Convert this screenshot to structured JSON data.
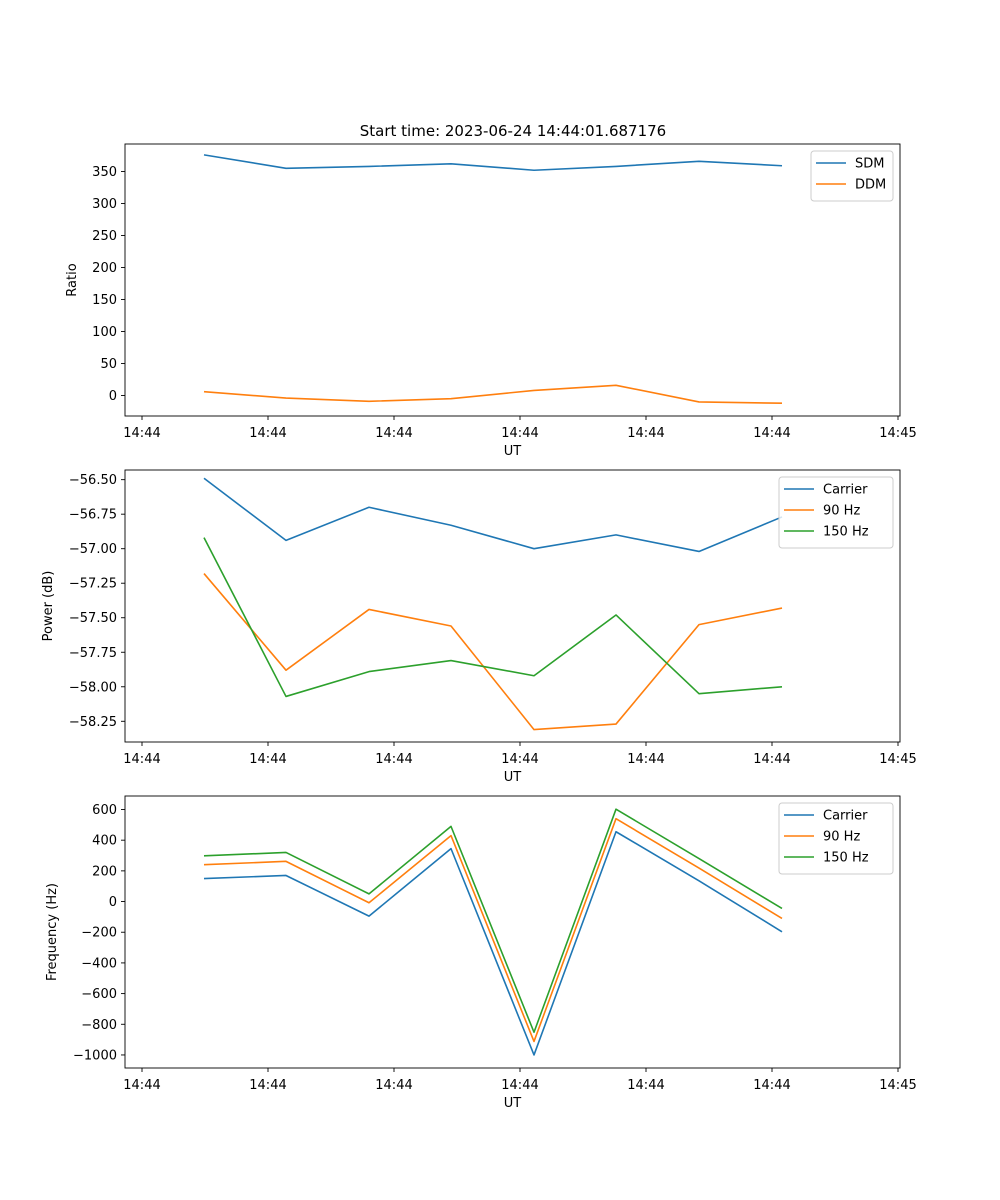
{
  "figure": {
    "title": "Start time: 2023-06-24 14:44:01.687176"
  },
  "chart_data": [
    {
      "type": "line",
      "xlabel": "UT",
      "ylabel": "Ratio",
      "x_tick_labels": [
        "14:44",
        "14:44",
        "14:44",
        "14:44",
        "14:44",
        "14:44",
        "14:44",
        "14:45"
      ],
      "x_points": 8,
      "ylim": [
        -32,
        393
      ],
      "yticks": [
        0,
        50,
        100,
        150,
        200,
        250,
        300,
        350
      ],
      "legend": "top-right",
      "grid": false,
      "series": [
        {
          "name": "SDM",
          "color": "#1f77b4",
          "values": [
            376,
            355,
            358,
            362,
            352,
            358,
            366,
            359
          ]
        },
        {
          "name": "DDM",
          "color": "#ff7f0e",
          "values": [
            6,
            -4,
            -9,
            -5,
            8,
            16,
            -10,
            -12
          ]
        }
      ]
    },
    {
      "type": "line",
      "xlabel": "UT",
      "ylabel": "Power (dB)",
      "x_tick_labels": [
        "14:44",
        "14:44",
        "14:44",
        "14:44",
        "14:44",
        "14:44",
        "14:44",
        "14:45"
      ],
      "x_points": 8,
      "ylim": [
        -58.4,
        -56.43
      ],
      "yticks": [
        -58.25,
        -58.0,
        -57.75,
        -57.5,
        -57.25,
        -57.0,
        -56.75,
        -56.5
      ],
      "ytick_labels": [
        "−58.25",
        "−58.00",
        "−57.75",
        "−57.50",
        "−57.25",
        "−57.00",
        "−56.75",
        "−56.50"
      ],
      "legend": "top-right",
      "grid": false,
      "series": [
        {
          "name": "Carrier",
          "color": "#1f77b4",
          "values": [
            -56.49,
            -56.94,
            -56.7,
            -56.83,
            -57.0,
            -56.9,
            -57.02,
            -56.77
          ]
        },
        {
          "name": "90 Hz",
          "color": "#ff7f0e",
          "values": [
            -57.18,
            -57.88,
            -57.44,
            -57.56,
            -58.31,
            -58.27,
            -57.55,
            -57.43
          ]
        },
        {
          "name": "150 Hz",
          "color": "#2ca02c",
          "values": [
            -56.92,
            -58.07,
            -57.89,
            -57.81,
            -57.92,
            -57.48,
            -58.05,
            -58.0
          ]
        }
      ]
    },
    {
      "type": "line",
      "xlabel": "UT",
      "ylabel": "Frequency (Hz)",
      "x_tick_labels": [
        "14:44",
        "14:44",
        "14:44",
        "14:44",
        "14:44",
        "14:44",
        "14:44",
        "14:45"
      ],
      "x_points": 8,
      "ylim": [
        -1085,
        688
      ],
      "yticks": [
        -1000,
        -800,
        -600,
        -400,
        -200,
        0,
        200,
        400,
        600
      ],
      "ytick_labels": [
        "−1000",
        "−800",
        "−600",
        "−400",
        "−200",
        "0",
        "200",
        "400",
        "600"
      ],
      "legend": "top-right",
      "grid": false,
      "series": [
        {
          "name": "Carrier",
          "color": "#1f77b4",
          "values": [
            150,
            170,
            -95,
            345,
            -1000,
            455,
            135,
            -197
          ]
        },
        {
          "name": "90 Hz",
          "color": "#ff7f0e",
          "values": [
            240,
            262,
            -8,
            430,
            -912,
            540,
            218,
            -110
          ]
        },
        {
          "name": "150 Hz",
          "color": "#2ca02c",
          "values": [
            298,
            320,
            50,
            490,
            -852,
            602,
            280,
            -45
          ]
        }
      ]
    }
  ]
}
